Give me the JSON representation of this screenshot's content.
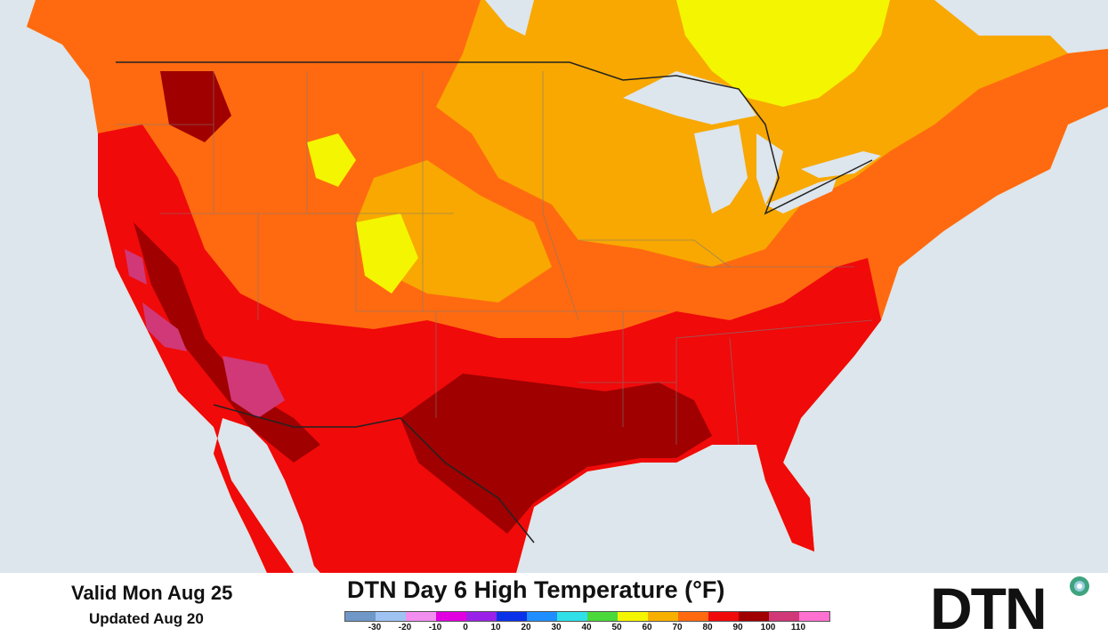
{
  "header": {
    "valid": "Valid Mon Aug 25",
    "updated": "Updated Aug 20",
    "title": "DTN Day 6 High Temperature (°F)"
  },
  "brand": {
    "logo_text": "DTN"
  },
  "legend": {
    "labels": [
      "-30",
      "-20",
      "-10",
      "0",
      "10",
      "20",
      "30",
      "40",
      "50",
      "60",
      "70",
      "80",
      "90",
      "100",
      "110"
    ],
    "colors": [
      "#6f97c8",
      "#9ec3f2",
      "#f18ef0",
      "#e000e0",
      "#9a22e8",
      "#0a32e8",
      "#1f8fff",
      "#2fe0e8",
      "#4ad83a",
      "#f4f500",
      "#f8b000",
      "#ff6a10",
      "#f00a0a",
      "#a00000",
      "#d03878",
      "#ff70d0"
    ]
  },
  "colors": {
    "water": "#dde5ed",
    "land_base": "#f8a800",
    "t60": "#f4f500",
    "t70": "#f8a800",
    "t80": "#ff6a10",
    "t90": "#f00a0a",
    "t100": "#a00000",
    "t110": "#d03878",
    "dot_outer": "#3fa37f",
    "dot_inner": "#9bcfe0"
  }
}
